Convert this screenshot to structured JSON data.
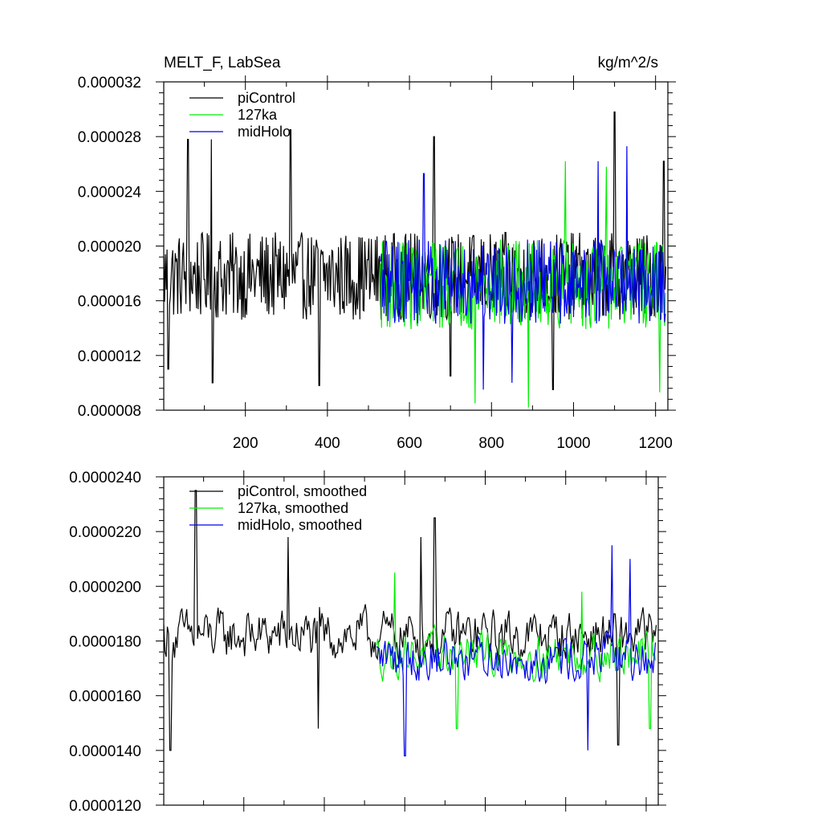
{
  "chart_data": [
    {
      "type": "line",
      "title": "MELT_F, LabSea",
      "units": "kg/m^2/s",
      "xlim": [
        1,
        1230
      ],
      "ylim": [
        8e-06,
        3.2e-05
      ],
      "xticks": [
        200,
        400,
        600,
        800,
        1000,
        1200
      ],
      "xtick_labels": [
        "200",
        "400",
        "600",
        "800",
        "1000",
        "1200"
      ],
      "yticks": [
        8e-06,
        1.2e-05,
        1.6e-05,
        2e-05,
        2.4e-05,
        2.8e-05,
        3.2e-05
      ],
      "ytick_labels": [
        "0.000008",
        "0.000012",
        "0.000016",
        "0.000020",
        "0.000024",
        "0.000028",
        "0.000032"
      ],
      "legend_position": "top-left",
      "legend": [
        "piControl",
        "127ka",
        "midHolo"
      ],
      "series": [
        {
          "name": "piControl",
          "color": "#000000",
          "x_range": [
            1,
            1225
          ],
          "mean": 1.78e-05,
          "spread": 3.2e-06,
          "peaks": [
            [
              60,
              2.78e-05
            ],
            [
              118,
              2.78e-05
            ],
            [
              310,
              2.85e-05
            ],
            [
              660,
              2.8e-05
            ],
            [
              1100,
              2.98e-05
            ],
            [
              1220,
              2.62e-05
            ]
          ],
          "troughs": [
            [
              12,
              1.1e-05
            ],
            [
              120,
              1e-05
            ],
            [
              380,
              9.8e-06
            ],
            [
              700,
              1.05e-05
            ],
            [
              950,
              9.5e-06
            ]
          ]
        },
        {
          "name": "127ka",
          "color": "#00ee00",
          "x_range": [
            530,
            1225
          ],
          "mean": 1.72e-05,
          "spread": 3.3e-06,
          "peaks": [
            [
              980,
              2.62e-05
            ],
            [
              1080,
              2.58e-05
            ]
          ],
          "troughs": [
            [
              760,
              8.5e-06
            ],
            [
              890,
              8.2e-06
            ],
            [
              1210,
              9.3e-06
            ]
          ]
        },
        {
          "name": "midHolo",
          "color": "#0000ee",
          "x_range": [
            530,
            1225
          ],
          "mean": 1.74e-05,
          "spread": 3.1e-06,
          "peaks": [
            [
              635,
              2.53e-05
            ],
            [
              1060,
              2.62e-05
            ],
            [
              1130,
              2.73e-05
            ]
          ],
          "troughs": [
            [
              780,
              9.5e-06
            ],
            [
              850,
              1e-05
            ]
          ]
        }
      ]
    },
    {
      "type": "line",
      "title": "",
      "units": "",
      "xlim": [
        1,
        1230
      ],
      "ylim": [
        1.2e-05,
        2.4e-05
      ],
      "xticks": [
        200,
        400,
        600,
        800,
        1000,
        1200
      ],
      "yticks": [
        1.2e-05,
        1.4e-05,
        1.6e-05,
        1.8e-05,
        2e-05,
        2.2e-05,
        2.4e-05
      ],
      "ytick_labels": [
        "0.0000120",
        "0.0000140",
        "0.0000160",
        "0.0000180",
        "0.0000200",
        "0.0000220",
        "0.0000240"
      ],
      "legend_position": "top-left",
      "legend": [
        "piControl, smoothed",
        "127ka, smoothed",
        "midHolo, smoothed"
      ],
      "series": [
        {
          "name": "piControl, smoothed",
          "color": "#000000",
          "x_range": [
            1,
            1225
          ],
          "mean": 1.82e-05,
          "spread": 1.4e-06,
          "peaks": [
            [
              80,
              2.35e-05
            ],
            [
              310,
              2.18e-05
            ],
            [
              640,
              2.18e-05
            ],
            [
              675,
              2.25e-05
            ]
          ],
          "troughs": [
            [
              18,
              1.4e-05
            ],
            [
              385,
              1.48e-05
            ],
            [
              1130,
              1.42e-05
            ]
          ]
        },
        {
          "name": "127ka, smoothed",
          "color": "#00ee00",
          "x_range": [
            530,
            1225
          ],
          "mean": 1.75e-05,
          "spread": 1.2e-06,
          "peaks": [
            [
              575,
              2.05e-05
            ],
            [
              1040,
              1.98e-05
            ]
          ],
          "troughs": [
            [
              730,
              1.48e-05
            ],
            [
              1210,
              1.48e-05
            ]
          ]
        },
        {
          "name": "midHolo, smoothed",
          "color": "#0000ee",
          "x_range": [
            530,
            1225
          ],
          "mean": 1.74e-05,
          "spread": 1.3e-06,
          "peaks": [
            [
              1115,
              2.15e-05
            ],
            [
              1160,
              2.1e-05
            ]
          ],
          "troughs": [
            [
              600,
              1.38e-05
            ],
            [
              1055,
              1.4e-05
            ]
          ]
        }
      ]
    }
  ]
}
